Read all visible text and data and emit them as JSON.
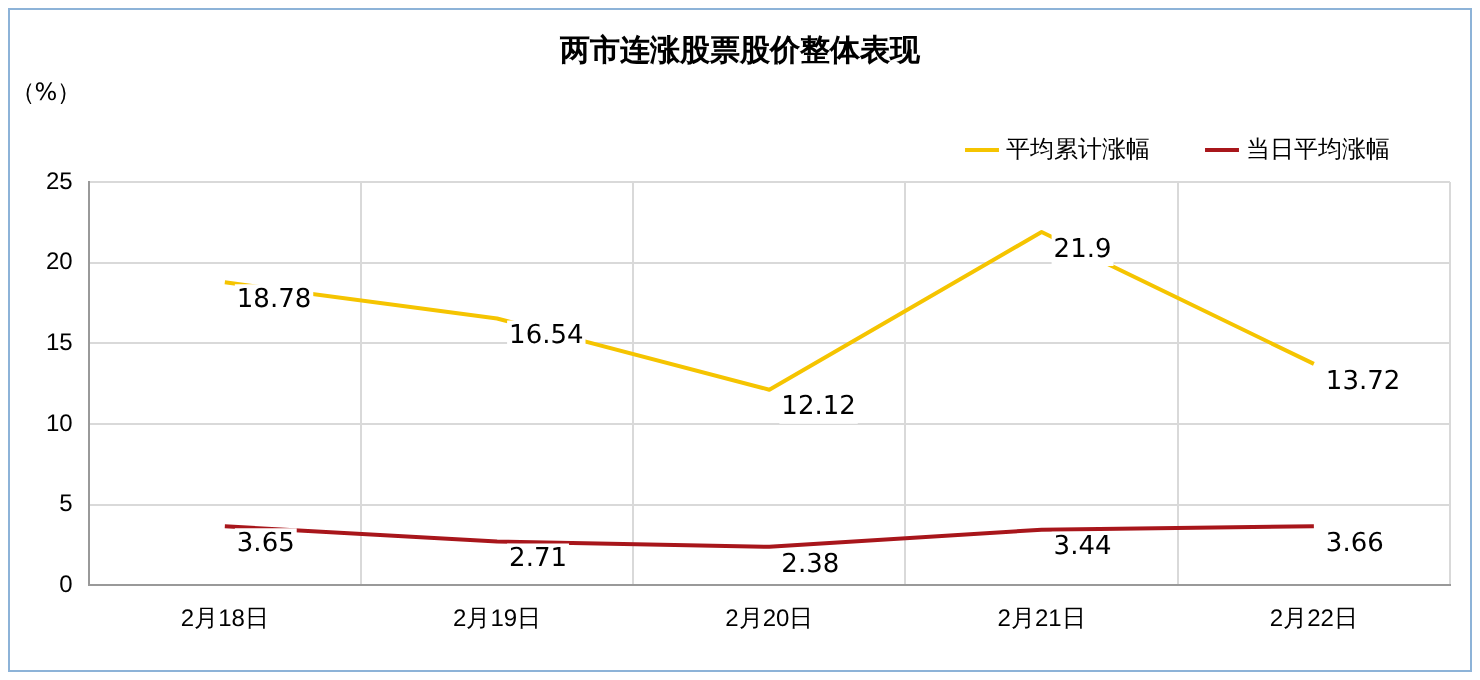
{
  "chart_data": {
    "type": "line",
    "title": "两市连涨股票股价整体表现",
    "ylabel": "（%）",
    "categories": [
      "2月18日",
      "2月19日",
      "2月20日",
      "2月21日",
      "2月22日"
    ],
    "series": [
      {
        "name": "平均累计涨幅",
        "color": "#f5c400",
        "values": [
          18.78,
          16.54,
          12.12,
          21.9,
          13.72
        ]
      },
      {
        "name": "当日平均涨幅",
        "color": "#a8161b",
        "values": [
          3.65,
          2.71,
          2.38,
          3.44,
          3.66
        ]
      }
    ],
    "ylim": [
      0,
      25
    ],
    "yticks": [
      0,
      5,
      10,
      15,
      20,
      25
    ],
    "grid": true,
    "legend": "top right",
    "marker": "none",
    "line_style": "solid",
    "data_labels": true
  }
}
